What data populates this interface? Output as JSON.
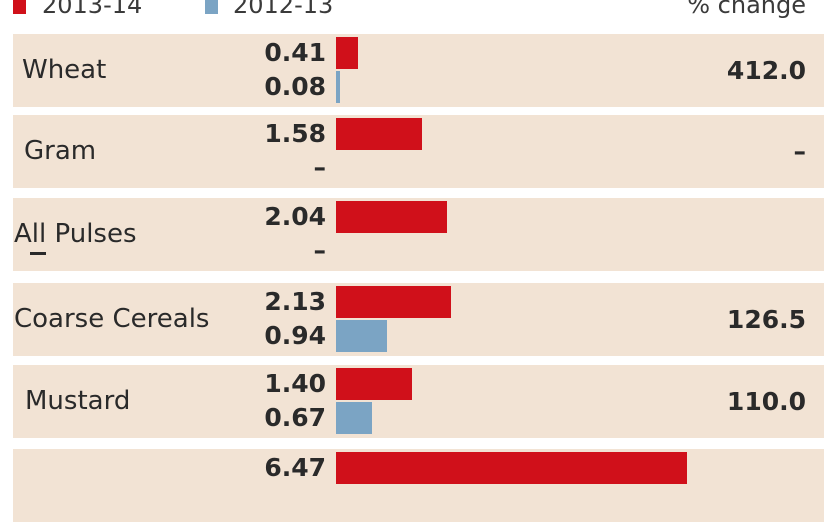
{
  "chart_data": {
    "type": "bar",
    "orientation": "horizontal",
    "legend": [
      {
        "name": "2013-14",
        "color": "#d0101a"
      },
      {
        "name": "2012-13",
        "color": "#7ba4c4"
      }
    ],
    "pct_header": "% change",
    "categories": [
      "Wheat",
      "Gram",
      "All Pulses",
      "Coarse Cereals",
      "Mustard",
      ""
    ],
    "series": [
      {
        "name": "2013-14",
        "values": [
          0.41,
          1.58,
          2.04,
          2.13,
          1.4,
          6.47
        ],
        "labels": [
          "0.41",
          "1.58",
          "2.04",
          "2.13",
          "1.40",
          "6.47"
        ]
      },
      {
        "name": "2012-13",
        "values": [
          0.08,
          null,
          null,
          0.94,
          0.67,
          null
        ],
        "labels": [
          "0.08",
          "–",
          "–",
          "0.94",
          "0.67",
          ""
        ]
      }
    ],
    "pct_change": [
      "412.0",
      "–",
      "",
      "126.5",
      "110.0",
      ""
    ],
    "xlim": [
      0,
      6.5
    ]
  }
}
